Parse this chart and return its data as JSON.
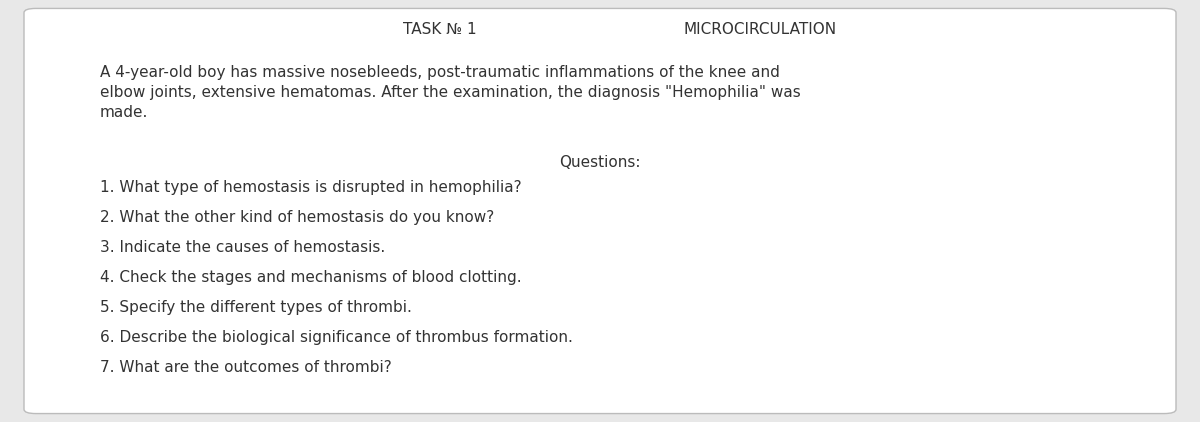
{
  "background_color": "#e8e8e8",
  "box_color": "#ffffff",
  "border_color": "#bbbbbb",
  "header_left": "TASK № 1",
  "header_right": "MICROCIRCULATION",
  "header_fontsize": 11,
  "body_line1": "A 4-year-old boy has massive nosebleeds, post-traumatic inflammations of the knee and",
  "body_line2": "elbow joints, extensive hematomas. After the examination, the diagnosis \"Hemophilia\" was",
  "body_line3": "made.",
  "body_fontsize": 11,
  "questions_title": "Questions:",
  "questions_title_fontsize": 11,
  "questions": [
    "1. What type of hemostasis is disrupted in hemophilia?",
    "2. What the other kind of hemostasis do you know?",
    "3. Indicate the causes of hemostasis.",
    "4. Check the stages and mechanisms of blood clotting.",
    "5. Specify the different types of thrombi.",
    "6. Describe the biological significance of thrombus formation.",
    "7. What are the outcomes of thrombi?"
  ],
  "questions_fontsize": 11,
  "text_color": "#333333",
  "font_family": "DejaVu Sans"
}
